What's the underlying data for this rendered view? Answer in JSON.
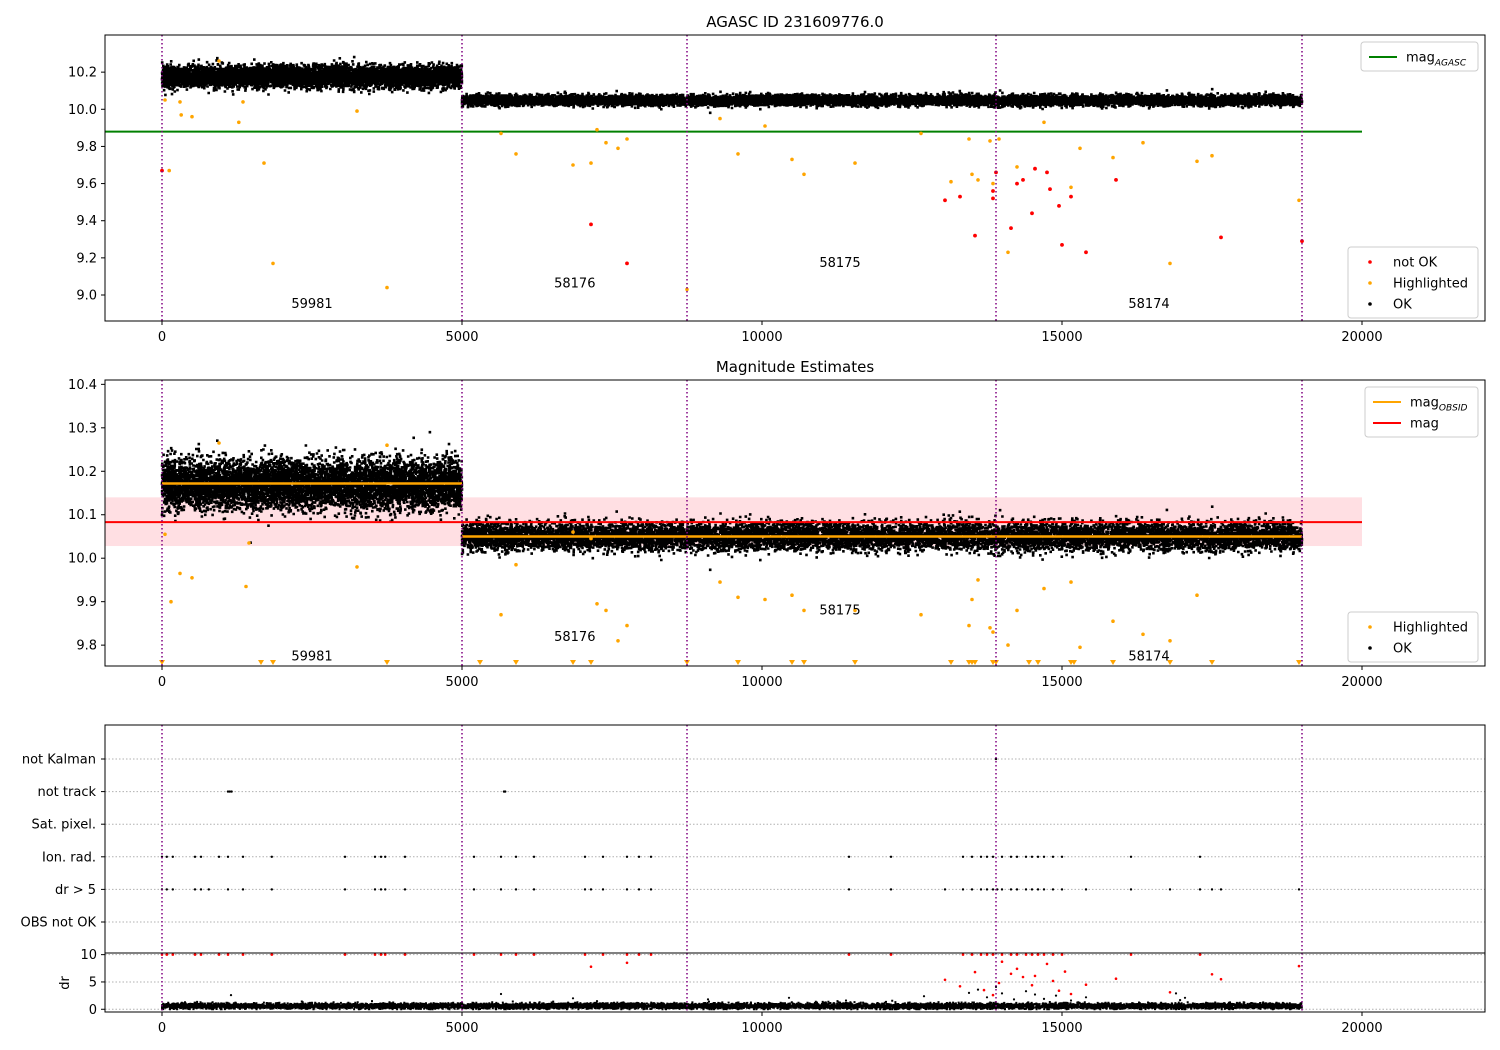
{
  "colors": {
    "ok": "#000000",
    "highlighted": "#ffa500",
    "not_ok": "#ff0000",
    "agasc_line": "#008000",
    "obsid_line": "#ffa500",
    "mag_line": "#ff0000",
    "mag_band": "#ffdfe3",
    "boundary": "#800080",
    "grid": "#b0b0b0"
  },
  "chart_data": [
    {
      "type": "scatter",
      "title": "AGASC ID 231609776.0",
      "xlim": [
        -950,
        22050
      ],
      "ylim": [
        8.86,
        10.4
      ],
      "xticks": [
        0,
        5000,
        10000,
        15000,
        20000
      ],
      "yticks": [
        9.0,
        9.2,
        9.4,
        9.6,
        9.8,
        10.0,
        10.2
      ],
      "ytick_labels": [
        "9.0",
        "9.2",
        "9.4",
        "9.6",
        "9.8",
        "10.0",
        "10.2"
      ],
      "obs_boundaries": [
        0,
        5000,
        8750,
        13900,
        19000
      ],
      "obsid_labels": [
        {
          "text": "59981",
          "x": 2500,
          "y": 8.93
        },
        {
          "text": "58176",
          "x": 6880,
          "y": 9.04
        },
        {
          "text": "58175",
          "x": 11300,
          "y": 9.15
        },
        {
          "text": "58174",
          "x": 16450,
          "y": 8.93
        }
      ],
      "hlines": [
        {
          "name": "mag_AGASC",
          "y": 9.88,
          "x0": -950,
          "x1": 20000,
          "color": "#008000"
        }
      ],
      "segments": [
        {
          "x0": 0,
          "x1": 5000,
          "mean": 10.175,
          "spread": 0.028
        },
        {
          "x0": 5000,
          "x1": 19000,
          "mean": 10.048,
          "spread": 0.014
        }
      ],
      "series": [
        {
          "name": "not OK",
          "color": "#ff0000",
          "x": [
            0,
            7150,
            7750,
            13050,
            13300,
            13550,
            13850,
            13850,
            13900,
            14150,
            14250,
            14350,
            14500,
            14550,
            14750,
            14800,
            14950,
            15000,
            15150,
            15400,
            15900,
            17650,
            19000
          ],
          "y": [
            9.67,
            9.38,
            9.17,
            9.51,
            9.53,
            9.32,
            9.52,
            9.56,
            9.66,
            9.36,
            9.6,
            9.62,
            9.44,
            9.68,
            9.66,
            9.57,
            9.48,
            9.27,
            9.53,
            9.23,
            9.62,
            9.31,
            9.29
          ]
        },
        {
          "name": "Highlighted",
          "color": "#ffa500",
          "x": [
            50,
            120,
            300,
            320,
            500,
            950,
            1280,
            1350,
            1700,
            1850,
            3250,
            3750,
            5650,
            5900,
            6850,
            7150,
            7250,
            7400,
            7600,
            7750,
            8750,
            9300,
            9600,
            10050,
            10500,
            10700,
            11550,
            12650,
            13150,
            13450,
            13500,
            13600,
            13800,
            13850,
            13950,
            14100,
            14250,
            14700,
            15150,
            15300,
            15850,
            16350,
            16800,
            17250,
            17500,
            18950
          ],
          "y": [
            10.05,
            9.67,
            10.04,
            9.97,
            9.96,
            10.26,
            9.93,
            10.04,
            9.71,
            9.17,
            9.99,
            9.04,
            9.87,
            9.76,
            9.7,
            9.71,
            9.89,
            9.82,
            9.79,
            9.84,
            9.03,
            9.95,
            9.76,
            9.91,
            9.73,
            9.65,
            9.71,
            9.87,
            9.61,
            9.84,
            9.65,
            9.62,
            9.83,
            9.6,
            9.84,
            9.23,
            9.69,
            9.93,
            9.58,
            9.79,
            9.74,
            9.82,
            9.17,
            9.72,
            9.75,
            9.51
          ]
        }
      ],
      "legend_top": [
        {
          "label": "mag",
          "sub": "AGASC",
          "color": "#008000",
          "marker": "line"
        }
      ],
      "legend_bottom": [
        {
          "label": "not OK",
          "color": "#ff0000",
          "marker": "dot"
        },
        {
          "label": "Highlighted",
          "color": "#ffa500",
          "marker": "dot"
        },
        {
          "label": "OK",
          "color": "#000000",
          "marker": "dot"
        }
      ]
    },
    {
      "type": "scatter",
      "title": "Magnitude Estimates",
      "xlim": [
        -950,
        22050
      ],
      "ylim": [
        9.752,
        10.41
      ],
      "xticks": [
        0,
        5000,
        10000,
        15000,
        20000
      ],
      "yticks": [
        9.8,
        9.9,
        10.0,
        10.1,
        10.2,
        10.3,
        10.4
      ],
      "ytick_labels": [
        "9.8",
        "9.9",
        "10.0",
        "10.1",
        "10.2",
        "10.3",
        "10.4"
      ],
      "obs_boundaries": [
        0,
        5000,
        8750,
        13900,
        19000
      ],
      "obsid_labels": [
        {
          "text": "59981",
          "x": 2500,
          "y": 9.765
        },
        {
          "text": "58176",
          "x": 6880,
          "y": 9.81
        },
        {
          "text": "58175",
          "x": 11300,
          "y": 9.87
        },
        {
          "text": "58174",
          "x": 16450,
          "y": 9.765
        }
      ],
      "mag_band": {
        "x0": -950,
        "x1": 20000,
        "y0": 10.028,
        "y1": 10.14
      },
      "hlines": [
        {
          "name": "mag",
          "y": 10.083,
          "x0": -950,
          "x1": 20000,
          "color": "#ff0000"
        }
      ],
      "obsid_mags": [
        {
          "x0": 0,
          "x1": 5000,
          "y": 10.172
        },
        {
          "x0": 5000,
          "x1": 19000,
          "y": 10.05
        }
      ],
      "segments": [
        {
          "x0": 0,
          "x1": 5000,
          "mean": 10.17,
          "spread": 0.028
        },
        {
          "x0": 5000,
          "x1": 19000,
          "mean": 10.05,
          "spread": 0.016
        }
      ],
      "series": [
        {
          "name": "Highlighted",
          "color": "#ffa500",
          "x": [
            50,
            150,
            300,
            500,
            950,
            1400,
            1450,
            3250,
            3750,
            5650,
            5900,
            6850,
            7150,
            7250,
            7400,
            7600,
            7750,
            9300,
            9600,
            10050,
            10500,
            10700,
            11550,
            12650,
            13450,
            13500,
            13600,
            13800,
            13850,
            14100,
            14250,
            14700,
            15150,
            15300,
            15850,
            16350,
            16800,
            17250
          ],
          "y": [
            10.055,
            9.9,
            9.965,
            9.955,
            10.265,
            9.935,
            10.035,
            9.98,
            10.26,
            9.87,
            9.985,
            10.06,
            10.045,
            9.895,
            9.88,
            9.81,
            9.845,
            9.945,
            9.91,
            9.905,
            9.915,
            9.88,
            9.88,
            9.87,
            9.845,
            9.905,
            9.95,
            9.84,
            9.83,
            9.8,
            9.88,
            9.93,
            9.945,
            9.795,
            9.855,
            9.825,
            9.81,
            9.915
          ]
        }
      ],
      "below_limit": [
        0,
        1650,
        1850,
        3750,
        5300,
        5900,
        6850,
        7150,
        8750,
        9600,
        10500,
        10700,
        11550,
        13150,
        13450,
        13500,
        13550,
        13850,
        13900,
        14450,
        14600,
        15150,
        15200,
        15850,
        16800,
        17500,
        18950
      ],
      "legend_top": [
        {
          "label": "mag",
          "sub": "OBSID",
          "color": "#ffa500",
          "marker": "line"
        },
        {
          "label": "mag",
          "sub": "",
          "color": "#ff0000",
          "marker": "line"
        }
      ],
      "legend_bottom": [
        {
          "label": "Highlighted",
          "color": "#ffa500",
          "marker": "dot"
        },
        {
          "label": "OK",
          "color": "#000000",
          "marker": "dot"
        }
      ]
    },
    {
      "type": "scatter",
      "title": "",
      "xlim": [
        -950,
        22050
      ],
      "categories": [
        "not Kalman",
        "not track",
        "Sat. pixel.",
        "Ion. rad.",
        "dr > 5",
        "OBS not OK"
      ],
      "obs_boundaries": [
        0,
        5000,
        8750,
        13900,
        19000
      ],
      "flags": {
        "not Kalman": [
          13900
        ],
        "not track": [
          1100,
          1130,
          1160,
          5700,
          5720
        ],
        "Sat. pixel.": [],
        "Ion. rad.": [
          0,
          80,
          180,
          550,
          650,
          950,
          1100,
          1350,
          1830,
          3050,
          3550,
          3650,
          3720,
          4050,
          5200,
          5650,
          5900,
          6200,
          7050,
          7350,
          7750,
          7950,
          8150,
          11450,
          12150,
          13350,
          13500,
          13650,
          13750,
          13850,
          14000,
          14150,
          14250,
          14400,
          14500,
          14600,
          14700,
          14850,
          15000,
          16150,
          17300
        ],
        "dr > 5": [
          0,
          80,
          180,
          550,
          650,
          780,
          1100,
          1350,
          1830,
          3050,
          3550,
          3650,
          3720,
          4050,
          5200,
          5650,
          5900,
          6200,
          7050,
          7150,
          7350,
          7750,
          7950,
          8150,
          11450,
          12150,
          13050,
          13350,
          13500,
          13650,
          13750,
          13850,
          13920,
          14000,
          14150,
          14250,
          14400,
          14500,
          14600,
          14700,
          14850,
          15000,
          15400,
          16150,
          16800,
          17300,
          17500,
          17650,
          18950
        ],
        "OBS not OK": []
      }
    },
    {
      "type": "scatter",
      "title": "",
      "ylabel": "dr",
      "xlim": [
        -950,
        22050
      ],
      "ylim": [
        -0.5,
        10.3
      ],
      "xticks": [
        0,
        5000,
        10000,
        15000,
        20000
      ],
      "yticks": [
        0,
        5,
        10
      ],
      "ytick_labels": [
        "0",
        "5",
        "10"
      ],
      "obs_boundaries": [
        0,
        5000,
        8750,
        13900,
        19000
      ],
      "series": [
        {
          "name": "not OK",
          "color": "#ff0000",
          "x": [
            0,
            80,
            180,
            550,
            650,
            950,
            1100,
            1350,
            1830,
            3050,
            3550,
            3650,
            3720,
            4050,
            5200,
            5650,
            5900,
            6200,
            7050,
            7350,
            7750,
            7950,
            8150,
            11450,
            12150,
            13350,
            13500,
            13650,
            13750,
            13850,
            14000,
            14150,
            14250,
            14400,
            14500,
            14600,
            14700,
            14850,
            15000,
            16150,
            17300,
            7150,
            7750,
            13050,
            13300,
            13550,
            13700,
            13850,
            13950,
            14000,
            14150,
            14250,
            14350,
            14500,
            14550,
            14750,
            14850,
            14950,
            15050,
            15150,
            15400,
            15900,
            16800,
            17500,
            17650,
            18950
          ],
          "y": [
            10,
            10,
            10,
            10,
            10,
            10,
            10,
            10,
            10,
            10,
            10,
            10,
            10,
            10,
            10,
            10,
            10,
            10,
            10,
            10,
            10,
            10,
            10,
            10,
            10,
            10,
            10,
            10,
            10,
            10,
            10,
            10,
            10,
            10,
            10,
            10,
            10,
            10,
            10,
            10,
            10,
            7.8,
            8.5,
            5.4,
            4.2,
            6.8,
            3.5,
            2.6,
            4.8,
            8.7,
            6.5,
            7.4,
            5.9,
            4.4,
            6.1,
            8.3,
            5.2,
            3.4,
            6.9,
            2.8,
            4.5,
            5.6,
            3.1,
            6.4,
            5.5,
            7.9
          ]
        },
        {
          "name": "OK",
          "color": "#000000",
          "x": [
            1150,
            5650,
            6850,
            7250,
            9100,
            10450,
            11400,
            12700,
            13450,
            13600,
            13750,
            13900,
            14000,
            14200,
            14400,
            14550,
            14700,
            14900,
            15150,
            15400,
            16900,
            17050
          ],
          "y": [
            2.6,
            2.8,
            2.0,
            1.5,
            1.8,
            2.1,
            1.6,
            2.4,
            3.0,
            3.6,
            2.2,
            4.1,
            2.9,
            1.8,
            3.3,
            2.7,
            1.9,
            2.5,
            1.6,
            2.2,
            2.9,
            2.1
          ]
        }
      ],
      "baseline": {
        "x0": 0,
        "x1": 19000,
        "mean": 0.6,
        "spread": 0.5
      }
    }
  ]
}
